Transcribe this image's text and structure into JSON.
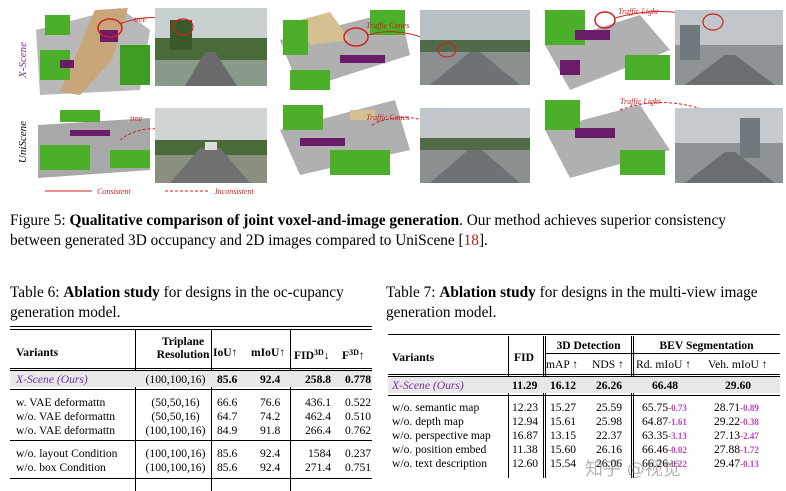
{
  "figure": {
    "row_labels": [
      "X-Scene",
      "UniScene"
    ],
    "annotations": {
      "tree": "tree",
      "traffic_cones": "Traffic Cones",
      "traffic_light": "Traffic Light"
    },
    "legend": {
      "consistent": "Consistent",
      "inconsistent": "Inconsistent"
    }
  },
  "fig5_caption": {
    "label": "Figure 5:",
    "bold": "Qualitative comparison of joint voxel-and-image generation",
    "text": ". Our method achieves superior consistency between generated 3D occupancy and 2D images compared to UniScene [",
    "ref": "18",
    "end": "]."
  },
  "table6": {
    "label": "Table 6:",
    "bold": "Ablation study",
    "text": " for designs in the oc-cupancy generation model.",
    "headers": {
      "variants": "Variants",
      "triplane": "Triplane",
      "resolution": "Resolution",
      "iou": "IoU↑",
      "miou": "mIoU↑",
      "fid": "FID",
      "fid_sup": "3D",
      "fid_arrow": "↓",
      "f": "F",
      "f_sup": "3D",
      "f_arrow": "↑"
    },
    "rows": [
      {
        "variant": "X-Scene (Ours)",
        "res": "(100,100,16)",
        "iou": "85.6",
        "miou": "92.4",
        "fid": "258.8",
        "f": "0.778"
      },
      {
        "variant": "w.   VAE deformattn",
        "res": "(50,50,16)",
        "iou": "66.6",
        "miou": "76.6",
        "fid": "436.1",
        "f": "0.522"
      },
      {
        "variant": "w/o. VAE deformattn",
        "res": "(50,50,16)",
        "iou": "64.7",
        "miou": "74.2",
        "fid": "462.4",
        "f": "0.510"
      },
      {
        "variant": "w/o. VAE deformattn",
        "res": "(100,100,16)",
        "iou": "84.9",
        "miou": "91.8",
        "fid": "266.4",
        "f": "0.762"
      },
      {
        "variant": "w/o. layout Condition",
        "res": "(100,100,16)",
        "iou": "85.6",
        "miou": "92.4",
        "fid": "1584",
        "f": "0.237"
      },
      {
        "variant": "w/o. box Condition",
        "res": "(100,100,16)",
        "iou": "85.6",
        "miou": "92.4",
        "fid": "271.4",
        "f": "0.751"
      }
    ]
  },
  "table7": {
    "label": "Table 7:",
    "bold": "Ablation study",
    "text": " for designs in the multi-view image generation model.",
    "headers": {
      "variants": "Variants",
      "fid": "FID",
      "det": "3D Detection",
      "seg": "BEV Segmentation",
      "map": "mAP ↑",
      "nds": "NDS ↑",
      "rd": "Rd. mIoU ↑",
      "veh": "Veh. mIoU ↑"
    },
    "rows": [
      {
        "variant": "X-Scene (Ours)",
        "fid": "11.29",
        "map": "16.12",
        "nds": "26.26",
        "rd": "66.48",
        "rd_d": "",
        "veh": "29.60",
        "veh_d": ""
      },
      {
        "variant": "w/o. semantic map",
        "fid": "12.23",
        "map": "15.27",
        "nds": "25.59",
        "rd": "65.75",
        "rd_d": "-0.73",
        "veh": "28.71",
        "veh_d": "-0.89"
      },
      {
        "variant": "w/o. depth map",
        "fid": "12.94",
        "map": "15.61",
        "nds": "25.98",
        "rd": "64.87",
        "rd_d": "-1.61",
        "veh": "29.22",
        "veh_d": "-0.38"
      },
      {
        "variant": "w/o. perspective map",
        "fid": "16.87",
        "map": "13.15",
        "nds": "22.37",
        "rd": "63.35",
        "rd_d": "-3.13",
        "veh": "27.13",
        "veh_d": "-2.47"
      },
      {
        "variant": "w/o. position embed",
        "fid": "11.38",
        "map": "15.60",
        "nds": "26.16",
        "rd": "66.46",
        "rd_d": "-0.02",
        "veh": "27.88",
        "veh_d": "-1.72"
      },
      {
        "variant": "w/o. text description",
        "fid": "12.60",
        "map": "15.54",
        "nds": "26.06",
        "rd": "66.26",
        "rd_d": "-0.22",
        "veh": "29.47",
        "veh_d": "-0.13"
      }
    ]
  },
  "watermark": "知乎 @视觉"
}
